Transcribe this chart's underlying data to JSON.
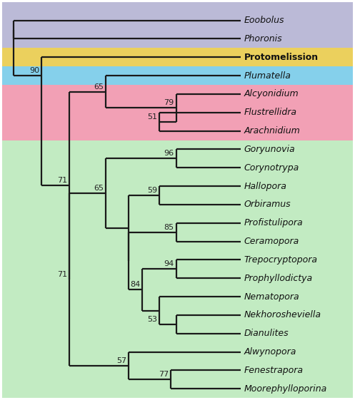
{
  "taxa": [
    "Eoobolus",
    "Phoronis",
    "Protomelission",
    "Plumatella",
    "Alcyonidium",
    "Flustrellidra",
    "Arachnidium",
    "Goryunovia",
    "Corynotrypa",
    "Hallopora",
    "Orbiramus",
    "Profistulipora",
    "Ceramopora",
    "Trepocryptopora",
    "Prophyllodictya",
    "Nematopora",
    "Nekhorosheviella",
    "Dianulites",
    "Alwynopora",
    "Fenestrapora",
    "Moorephylloporina"
  ],
  "taxa_bold": [
    "Protomelission"
  ],
  "bg_bands": [
    {
      "y_lo": 18.5,
      "y_hi": 21.0,
      "color": "#b0aed0"
    },
    {
      "y_lo": 17.5,
      "y_hi": 18.5,
      "color": "#e8c840"
    },
    {
      "y_lo": 16.5,
      "y_hi": 17.5,
      "color": "#70c8e8"
    },
    {
      "y_lo": 13.5,
      "y_hi": 16.5,
      "color": "#f090a8"
    },
    {
      "y_lo": -0.5,
      "y_hi": 13.5,
      "color": "#b8e8b8"
    }
  ],
  "line_color": "#1a1a1a",
  "line_width": 1.6,
  "font_size_taxa": 9.0,
  "font_size_node": 8.0,
  "tip_x": 8.5,
  "xlim": [
    0,
    12.5
  ],
  "ylim": [
    -0.5,
    21.0
  ],
  "x_ep_node": 0.4,
  "x_n90": 1.4,
  "x_n71a": 2.4,
  "x_n65_pink": 3.7,
  "x_n79": 6.2,
  "x_n51": 5.6,
  "x_n71b": 2.4,
  "x_n65b": 3.7,
  "x_nb": 4.5,
  "x_nc": 4.5,
  "x_n96": 6.2,
  "x_n59": 5.6,
  "x_n85": 6.2,
  "x_n84": 5.0,
  "x_n94": 6.2,
  "x_ne": 5.6,
  "x_n53": 6.2,
  "x_n57": 4.5,
  "x_n77": 6.0
}
